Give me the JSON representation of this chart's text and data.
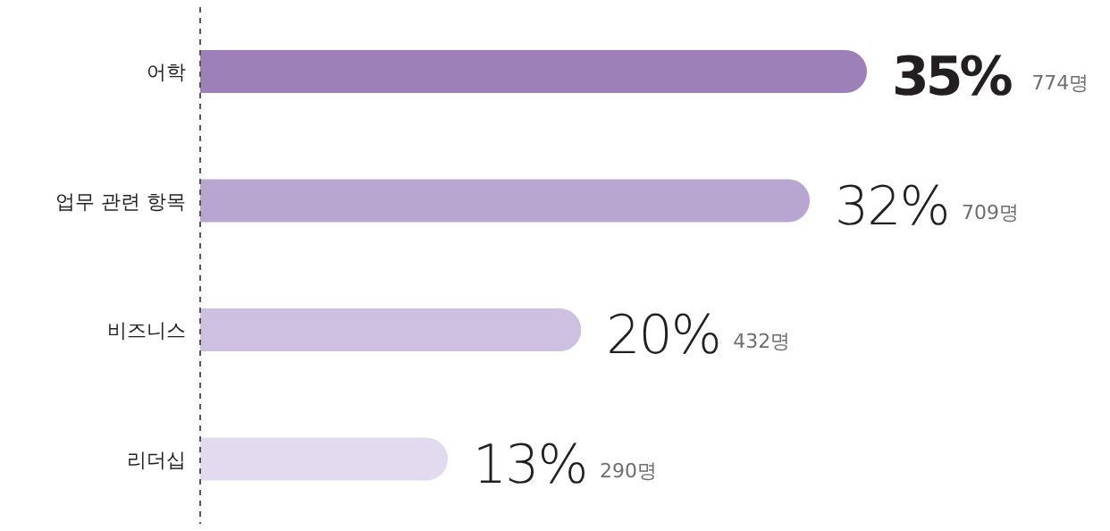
{
  "chart_data": {
    "type": "bar",
    "orientation": "horizontal",
    "categories": [
      "어학",
      "업무 관련 항목",
      "비즈니스",
      "리더십"
    ],
    "values": [
      35,
      32,
      20,
      13
    ],
    "colors": [
      "#9e80b9",
      "#b9a6d0",
      "#cdc0e1",
      "#e2daef"
    ],
    "value_labels": [
      "35%",
      "32%",
      "20%",
      "13%"
    ],
    "annotations": [
      "774명",
      "709명",
      "432명",
      "290명"
    ]
  }
}
